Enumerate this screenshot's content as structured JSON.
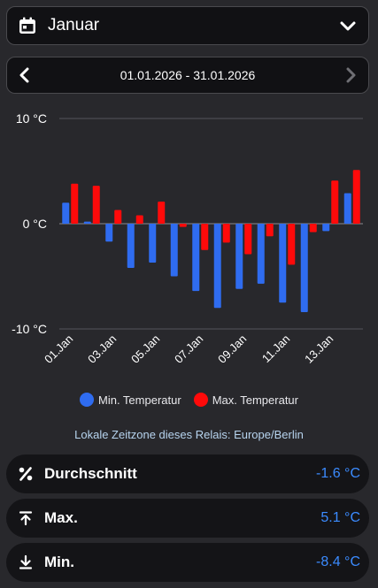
{
  "month_selector": {
    "label": "Januar"
  },
  "date_range": {
    "label": "01.01.2026 - 31.01.2026"
  },
  "chart_data": {
    "type": "bar",
    "categories": [
      "01.Jan",
      "02.Jan",
      "03.Jan",
      "04.Jan",
      "05.Jan",
      "06.Jan",
      "07.Jan",
      "08.Jan",
      "09.Jan",
      "10.Jan",
      "11.Jan",
      "12.Jan",
      "13.Jan",
      "14.Jan"
    ],
    "x_tick_labels": [
      "01.Jan",
      "03.Jan",
      "05.Jan",
      "07.Jan",
      "09.Jan",
      "11.Jan",
      "13.Jan"
    ],
    "series": [
      {
        "name": "Min. Temperatur",
        "color": "#2f6cf0",
        "values": [
          2.0,
          0.2,
          -1.7,
          -4.2,
          -3.7,
          -5.0,
          -6.4,
          -8.0,
          -6.2,
          -5.7,
          -7.5,
          -8.4,
          -0.7,
          2.9
        ]
      },
      {
        "name": "Max. Temperatur",
        "color": "#ff0a0a",
        "values": [
          3.8,
          3.6,
          1.3,
          0.8,
          2.1,
          -0.3,
          -2.5,
          -1.8,
          -2.9,
          -1.2,
          -3.9,
          -0.8,
          4.1,
          5.1
        ]
      }
    ],
    "y_ticks": [
      "10 °C",
      "0 °C",
      "-10 °C"
    ],
    "y_tick_values": [
      10,
      0,
      -10
    ],
    "ylim": [
      -10,
      10
    ],
    "grid": true
  },
  "timezone_note": "Lokale Zeitzone dieses Relais: Europe/Berlin",
  "stats": [
    {
      "label": "Durchschnitt",
      "value": "-1.6 °C",
      "icon": "percent-icon"
    },
    {
      "label": "Max.",
      "value": "5.1 °C",
      "icon": "arrow-up-to-line-icon"
    },
    {
      "label": "Min.",
      "value": "-8.4 °C",
      "icon": "arrow-down-to-line-icon"
    }
  ]
}
